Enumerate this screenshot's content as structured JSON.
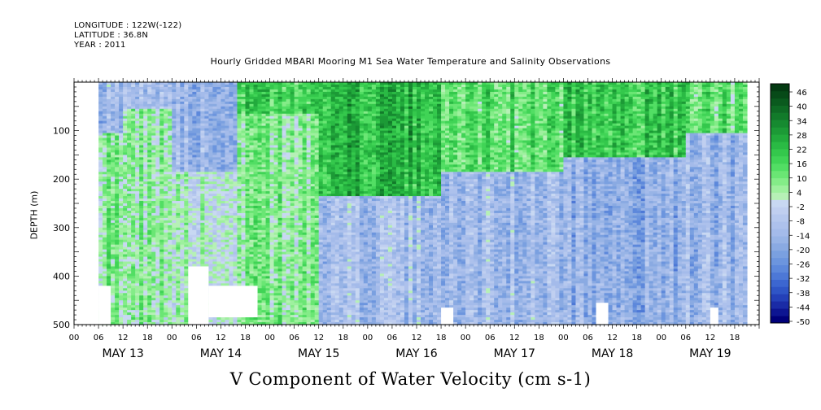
{
  "header": {
    "longitude": "LONGITUDE : 122W(-122)",
    "latitude": "LATITUDE : 36.8N",
    "year": "YEAR : 2011"
  },
  "chart_data": {
    "type": "heatmap",
    "title": "Hourly Gridded MBARI Mooring M1 Sea Water Temperature and Salinity Observations",
    "xlabel": "V Component of Water Velocity (cm s-1)",
    "ylabel": "DEPTH (m)",
    "x_hours_range": [
      0,
      168
    ],
    "data_start_hour": 6,
    "data_end_hour": 165,
    "y_range": [
      500,
      0
    ],
    "y_ticks": [
      100,
      200,
      300,
      400,
      500
    ],
    "y_tick_labels": [
      "100",
      "200",
      "300",
      "400",
      "500"
    ],
    "hour_tick_labels": [
      "00",
      "06",
      "12",
      "18",
      "00",
      "06",
      "12",
      "18",
      "00",
      "06",
      "12",
      "18",
      "00",
      "06",
      "12",
      "18",
      "00",
      "06",
      "12",
      "18",
      "00",
      "06",
      "12",
      "18",
      "00",
      "06",
      "12",
      "18"
    ],
    "date_labels": [
      "MAY 13",
      "MAY 14",
      "MAY 15",
      "MAY 16",
      "MAY 17",
      "MAY 18",
      "MAY 19"
    ],
    "colorbar": {
      "labels": [
        "46",
        "40",
        "34",
        "28",
        "22",
        "16",
        "10",
        "4",
        "-2",
        "-8",
        "-14",
        "-20",
        "-26",
        "-32",
        "-38",
        "-44",
        "-50"
      ],
      "levels": [
        -50,
        -47,
        -44,
        -41,
        -38,
        -35,
        -32,
        -29,
        -26,
        -23,
        -20,
        -17,
        -14,
        -11,
        -8,
        -5,
        -2,
        1,
        4,
        7,
        10,
        13,
        16,
        19,
        22,
        25,
        28,
        31,
        34,
        37,
        40,
        43,
        46,
        49
      ],
      "colors_low_to_high": [
        "#00007a",
        "#0d1592",
        "#1a2ba6",
        "#2440b8",
        "#2f55c6",
        "#3c66d0",
        "#4d78d6",
        "#5d88db",
        "#6c95de",
        "#7aa0e0",
        "#8aaae2",
        "#98b4e6",
        "#a4bbea",
        "#adc1ec",
        "#b6c8ee",
        "#c0cff0",
        "#c8d8f2",
        "#b6f0b6",
        "#9ef09e",
        "#84ec88",
        "#6ae674",
        "#52de64",
        "#40d456",
        "#34c84c",
        "#2aba44",
        "#22aa3c",
        "#1c9a36",
        "#168a30",
        "#127a2a",
        "#0e6a24",
        "#0a5a1e",
        "#074a18",
        "#043a12"
      ]
    },
    "time_depth_profiles": [
      {
        "hour_range": [
          6,
          12
        ],
        "upper": [
          0,
          100
        ],
        "upper_value": -12,
        "lower_value": 8
      },
      {
        "hour_range": [
          12,
          24
        ],
        "upper": [
          0,
          50
        ],
        "upper_value": -10,
        "lower_value": 6
      },
      {
        "hour_range": [
          24,
          40
        ],
        "upper": [
          0,
          180
        ],
        "upper_value": -14,
        "lower_value": 2
      },
      {
        "hour_range": [
          40,
          60
        ],
        "upper": [
          0,
          60
        ],
        "upper_value": 18,
        "lower_value": 8
      },
      {
        "hour_range": [
          60,
          90
        ],
        "upper": [
          0,
          230
        ],
        "upper_value": 24,
        "lower_value": -10
      },
      {
        "hour_range": [
          90,
          120
        ],
        "upper": [
          0,
          180
        ],
        "upper_value": 14,
        "lower_value": -12
      },
      {
        "hour_range": [
          120,
          150
        ],
        "upper": [
          0,
          150
        ],
        "upper_value": 20,
        "lower_value": -16
      },
      {
        "hour_range": [
          150,
          165
        ],
        "upper": [
          0,
          100
        ],
        "upper_value": 12,
        "lower_value": -14
      }
    ],
    "missing_data": [
      {
        "hours": [
          5,
          6
        ],
        "depth": [
          0,
          500
        ]
      },
      {
        "hours": [
          6,
          9
        ],
        "depth": [
          420,
          500
        ]
      },
      {
        "hours": [
          28,
          33
        ],
        "depth": [
          380,
          500
        ]
      },
      {
        "hours": [
          33,
          45
        ],
        "depth": [
          420,
          485
        ]
      },
      {
        "hours": [
          90,
          93
        ],
        "depth": [
          465,
          500
        ]
      },
      {
        "hours": [
          128,
          131
        ],
        "depth": [
          455,
          500
        ]
      },
      {
        "hours": [
          156,
          158
        ],
        "depth": [
          465,
          500
        ]
      }
    ]
  }
}
